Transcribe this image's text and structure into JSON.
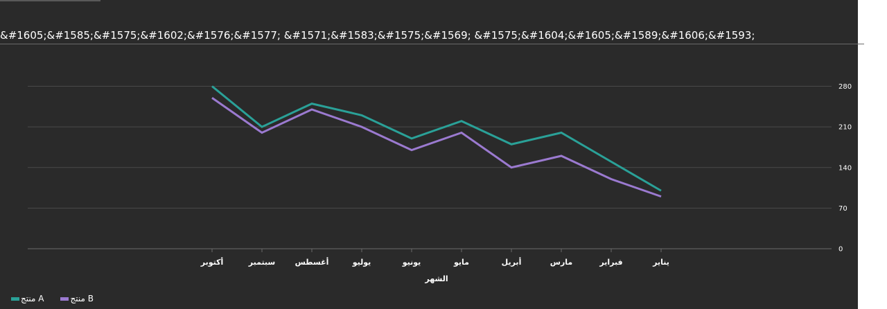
{
  "title": "&#1605;&#1585;&#1575;&#1602;&#1576;&#1577; &#1571;&#1583;&#1575;&#1569; &#1575;&#1604;&#1605;&#1589;&#1606;&#1593;",
  "chart_data": {
    "type": "line",
    "categories": [
      "يناير",
      "فبراير",
      "مارس",
      "أبريل",
      "مايو",
      "يونيو",
      "يوليو",
      "أغسطس",
      "سبتمبر",
      "أكتوبر"
    ],
    "xlabel": "الشهر",
    "ylabel": "",
    "ylim": [
      0,
      280
    ],
    "yticks": [
      0,
      70,
      140,
      210,
      280
    ],
    "grid": true,
    "legend_position": "bottom-left",
    "series": [
      {
        "name": "منتج A",
        "color": "#2aa198",
        "values": [
          100,
          150,
          200,
          180,
          220,
          190,
          230,
          250,
          210,
          280
        ]
      },
      {
        "name": "منتج B",
        "color": "#9b7ad0",
        "values": [
          90,
          120,
          160,
          140,
          200,
          170,
          210,
          240,
          200,
          260
        ]
      }
    ]
  }
}
